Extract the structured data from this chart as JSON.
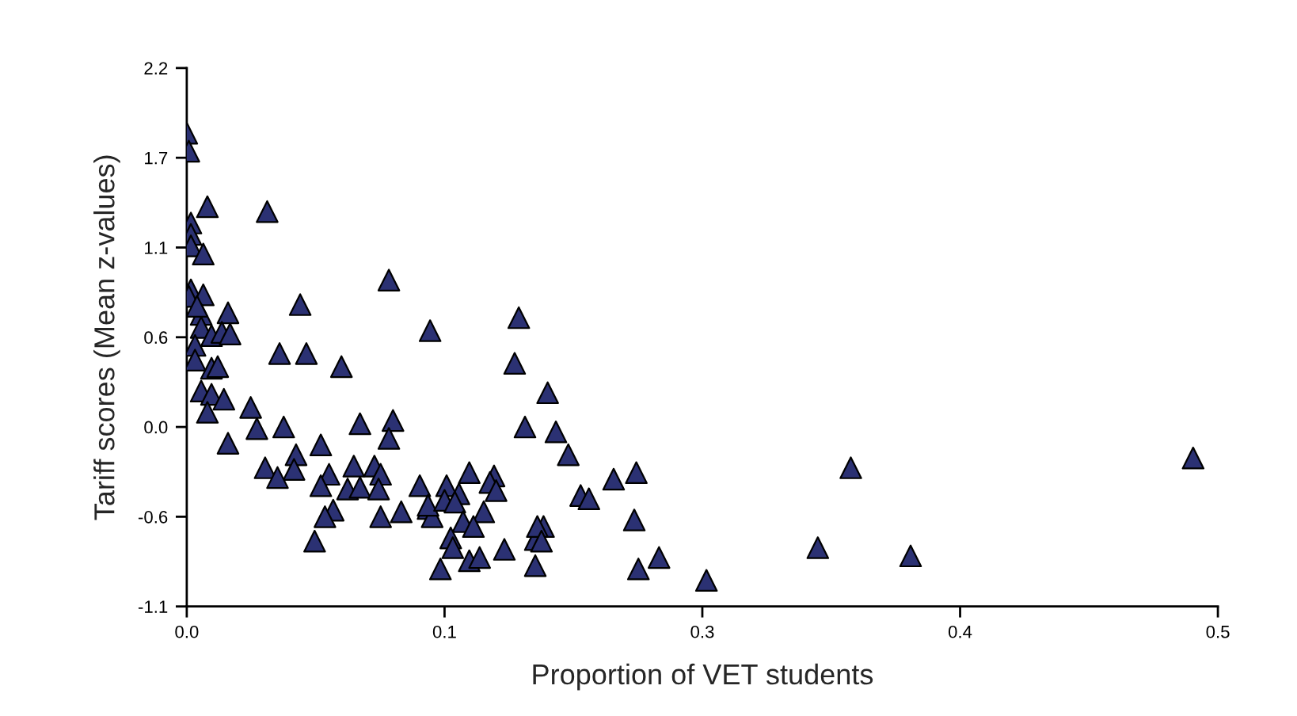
{
  "chart_data": {
    "type": "scatter",
    "xlabel": "Proportion of VET students",
    "ylabel": "Tariff scores (Mean z-values)",
    "marker": "triangle",
    "xlim": [
      0,
      0.5
    ],
    "ylim": [
      -1.1,
      2.2
    ],
    "xticks": [
      {
        "value": 0,
        "label": "0.0"
      },
      {
        "value": 0.125,
        "label": "0.1"
      },
      {
        "value": 0.25,
        "label": "0.3"
      },
      {
        "value": 0.375,
        "label": "0.4"
      },
      {
        "value": 0.5,
        "label": "0.5"
      }
    ],
    "yticks": [
      {
        "value": -1.1,
        "label": "-1.1"
      },
      {
        "value": -0.55,
        "label": "-0.6"
      },
      {
        "value": 0,
        "label": "0.0"
      },
      {
        "value": 0.55,
        "label": "0.6"
      },
      {
        "value": 1.1,
        "label": "1.1"
      },
      {
        "value": 1.65,
        "label": "1.7"
      },
      {
        "value": 2.2,
        "label": "2.2"
      }
    ],
    "series": [
      {
        "color": "#2b3173",
        "x": [
          0.0,
          0.001,
          0.01,
          0.039,
          0.002,
          0.002,
          0.002,
          0.008,
          0.098,
          0.002,
          0.008,
          0.001,
          0.055,
          0.02,
          0.007,
          0.005,
          0.007,
          0.012,
          0.017,
          0.021,
          0.118,
          0.045,
          0.058,
          0.004,
          0.004,
          0.012,
          0.015,
          0.075,
          0.007,
          0.012,
          0.018,
          0.01,
          0.031,
          0.034,
          0.047,
          0.084,
          0.1,
          0.098,
          0.02,
          0.065,
          0.053,
          0.038,
          0.052,
          0.044,
          0.069,
          0.081,
          0.091,
          0.094,
          0.065,
          0.078,
          0.084,
          0.093,
          0.113,
          0.071,
          0.067,
          0.094,
          0.104,
          0.117,
          0.119,
          0.062,
          0.123,
          0.161,
          0.159,
          0.175,
          0.164,
          0.179,
          0.185,
          0.207,
          0.218,
          0.191,
          0.195,
          0.217,
          0.219,
          0.229,
          0.252,
          0.126,
          0.137,
          0.149,
          0.147,
          0.132,
          0.117,
          0.125,
          0.13,
          0.15,
          0.144,
          0.134,
          0.139,
          0.128,
          0.129,
          0.137,
          0.142,
          0.154,
          0.169,
          0.169,
          0.173,
          0.17,
          0.172,
          0.306,
          0.322,
          0.351,
          0.488
        ],
        "values": [
          1.8,
          1.69,
          1.35,
          1.32,
          1.25,
          1.18,
          1.11,
          1.06,
          0.9,
          0.84,
          0.81,
          0.8,
          0.75,
          0.7,
          0.69,
          0.74,
          0.61,
          0.56,
          0.58,
          0.57,
          0.59,
          0.45,
          0.45,
          0.5,
          0.41,
          0.36,
          0.37,
          0.37,
          0.22,
          0.2,
          0.17,
          0.09,
          0.12,
          -0.01,
          0.0,
          0.02,
          0.04,
          -0.07,
          -0.1,
          -0.11,
          -0.17,
          -0.25,
          -0.26,
          -0.31,
          -0.29,
          -0.24,
          -0.24,
          -0.29,
          -0.36,
          -0.38,
          -0.37,
          -0.38,
          -0.36,
          -0.51,
          -0.55,
          -0.55,
          -0.52,
          -0.5,
          -0.55,
          -0.7,
          -0.87,
          0.67,
          0.39,
          0.21,
          0.0,
          -0.03,
          -0.17,
          -0.32,
          -0.28,
          -0.42,
          -0.44,
          -0.57,
          -0.87,
          -0.8,
          -0.94,
          -0.36,
          -0.28,
          -0.3,
          -0.34,
          -0.41,
          -0.48,
          -0.45,
          -0.46,
          -0.39,
          -0.52,
          -0.58,
          -0.61,
          -0.68,
          -0.74,
          -0.82,
          -0.8,
          -0.75,
          -0.85,
          -0.69,
          -0.61,
          -0.61,
          -0.7,
          -0.74,
          -0.25,
          -0.79,
          -0.19
        ]
      }
    ]
  }
}
